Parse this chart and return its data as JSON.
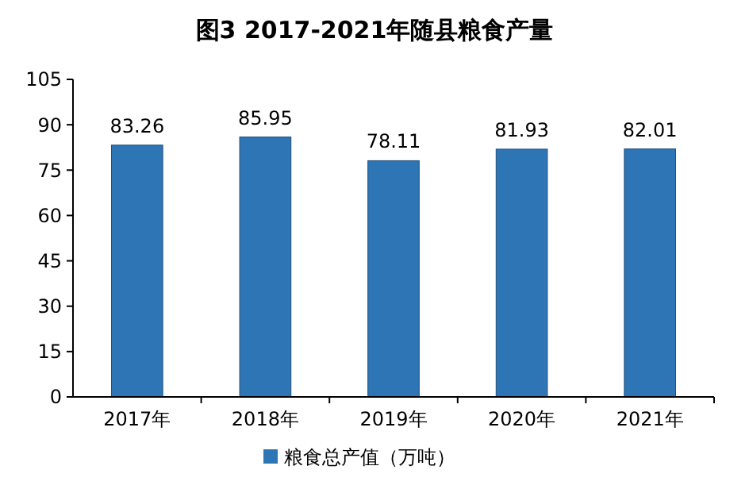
{
  "chart_data": {
    "type": "bar",
    "title": "图3  2017-2021年随县粮食产量",
    "categories": [
      "2017年",
      "2018年",
      "2019年",
      "2020年",
      "2021年"
    ],
    "series": [
      {
        "name": "粮食总产值（万吨）",
        "color": "#2e75b6",
        "values": [
          83.26,
          85.95,
          78.11,
          81.93,
          82.01
        ]
      }
    ],
    "ylim": [
      0,
      105
    ],
    "yticks": [
      0,
      15,
      30,
      45,
      60,
      75,
      90,
      105
    ],
    "data_labels": true,
    "legend": "bottom",
    "grid": false
  }
}
